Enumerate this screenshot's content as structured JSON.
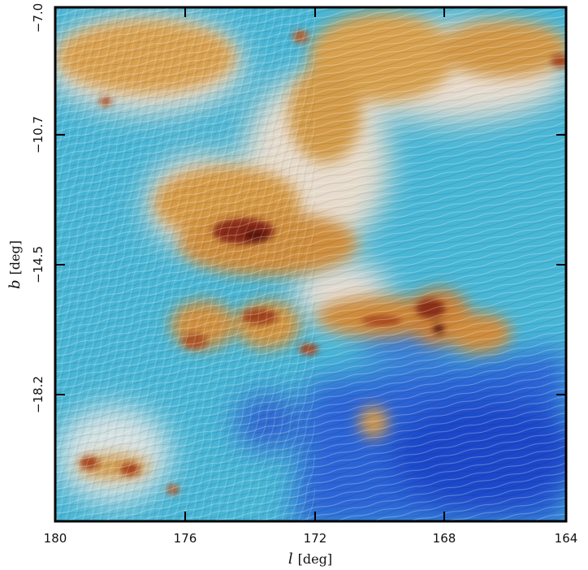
{
  "chart_data": {
    "type": "heatmap",
    "title": "",
    "xlabel_symbol": "l",
    "xlabel_unit": "[deg]",
    "ylabel_symbol": "b",
    "ylabel_unit": "[deg]",
    "xlim": [
      180,
      164
    ],
    "ylim": [
      -21.2,
      -7.0
    ],
    "x_ticks": [
      180,
      176,
      172,
      168,
      164
    ],
    "x_tick_labels": [
      "180",
      "176",
      "172",
      "168",
      "164"
    ],
    "y_ticks": [
      -7.0,
      -10.7,
      -14.5,
      -18.2
    ],
    "y_tick_labels": [
      "−7.0",
      "−10.7",
      "−14.5",
      "−18.2"
    ],
    "grid": false,
    "legend": "none",
    "colors": {
      "low": "#1f4fd8",
      "mid_low": "#3fb6d8",
      "mid": "#e9e4dc",
      "mid_high": "#d79a3a",
      "high": "#7a1e10"
    }
  }
}
